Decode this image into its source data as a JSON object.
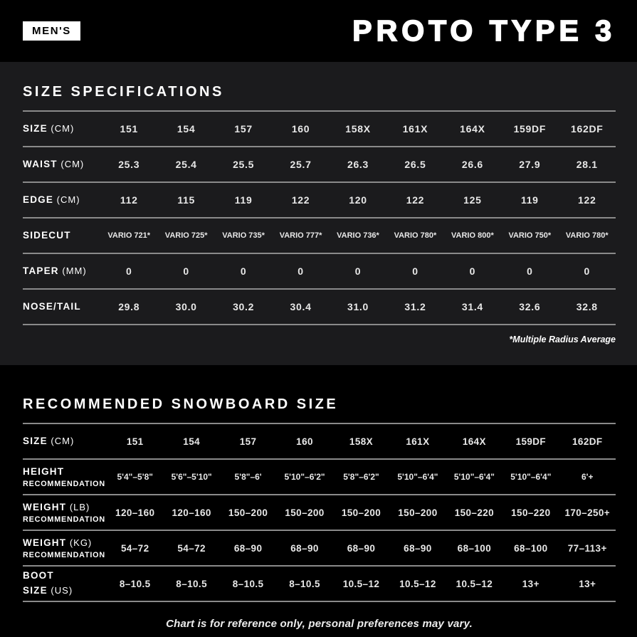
{
  "header": {
    "category_badge": "MEN'S",
    "title": "PROTO TYPE 3"
  },
  "colors": {
    "page_background": "#000000",
    "spec_card_background": "#1b1b1d",
    "rule_gray": "#8a8a8a",
    "text_white": "#ffffff",
    "value_gray": "#e8e8e8"
  },
  "chart_data": [
    {
      "type": "table",
      "title": "SIZE SPECIFICATIONS",
      "footnote": "*Multiple Radius Average",
      "rows": [
        {
          "label": "SIZE",
          "unit": "(CM)",
          "values": [
            "151",
            "154",
            "157",
            "160",
            "158X",
            "161X",
            "164X",
            "159DF",
            "162DF"
          ]
        },
        {
          "label": "WAIST",
          "unit": "(CM)",
          "values": [
            "25.3",
            "25.4",
            "25.5",
            "25.7",
            "26.3",
            "26.5",
            "26.6",
            "27.9",
            "28.1"
          ]
        },
        {
          "label": "EDGE",
          "unit": "(CM)",
          "values": [
            "112",
            "115",
            "119",
            "122",
            "120",
            "122",
            "125",
            "119",
            "122"
          ]
        },
        {
          "label": "SIDECUT",
          "values": [
            "VARIO 721*",
            "VARIO 725*",
            "VARIO 735*",
            "VARIO 777*",
            "VARIO 736*",
            "VARIO 780*",
            "VARIO 800*",
            "VARIO 750*",
            "VARIO 780*"
          ]
        },
        {
          "label": "TAPER",
          "unit": "(MM)",
          "values": [
            "0",
            "0",
            "0",
            "0",
            "0",
            "0",
            "0",
            "0",
            "0"
          ]
        },
        {
          "label": "NOSE/TAIL",
          "values": [
            "29.8",
            "30.0",
            "30.2",
            "30.4",
            "31.0",
            "31.2",
            "31.4",
            "32.6",
            "32.8"
          ]
        }
      ]
    },
    {
      "type": "table",
      "title": "RECOMMENDED SNOWBOARD SIZE",
      "footer": "Chart is for reference only, personal preferences may vary.",
      "rows": [
        {
          "label": "SIZE",
          "unit": "(CM)",
          "values": [
            "151",
            "154",
            "157",
            "160",
            "158X",
            "161X",
            "164X",
            "159DF",
            "162DF"
          ]
        },
        {
          "label": "HEIGHT",
          "label2": "RECOMMENDATION",
          "values": [
            "5'4\"–5'8\"",
            "5'6\"–5'10\"",
            "5'8\"–6'",
            "5'10\"–6'2\"",
            "5'8\"–6'2\"",
            "5'10\"–6'4\"",
            "5'10\"–6'4\"",
            "5'10\"–6'4\"",
            "6'+"
          ]
        },
        {
          "label": "WEIGHT",
          "unit": "(LB)",
          "label2": "RECOMMENDATION",
          "values": [
            "120–160",
            "120–160",
            "150–200",
            "150–200",
            "150–200",
            "150–200",
            "150–220",
            "150–220",
            "170–250+"
          ]
        },
        {
          "label": "WEIGHT",
          "unit": "(KG)",
          "label2": "RECOMMENDATION",
          "values": [
            "54–72",
            "54–72",
            "68–90",
            "68–90",
            "68–90",
            "68–90",
            "68–100",
            "68–100",
            "77–113+"
          ]
        },
        {
          "label": "BOOT SIZE",
          "unit": "(US)",
          "values": [
            "8–10.5",
            "8–10.5",
            "8–10.5",
            "8–10.5",
            "10.5–12",
            "10.5–12",
            "10.5–12",
            "13+",
            "13+"
          ]
        }
      ]
    }
  ]
}
